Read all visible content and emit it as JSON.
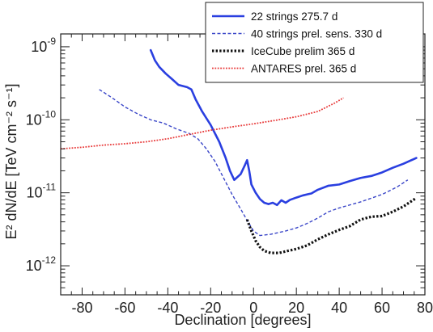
{
  "chart_data": {
    "type": "line",
    "xlabel": "Declination [degrees]",
    "ylabel": "E² dN/dE [TeV cm⁻² s⁻¹]",
    "xlim": [
      -90,
      80
    ],
    "ylim": [
      4e-13,
      1.5e-09
    ],
    "yscale": "log",
    "grid": false,
    "legend_position": "top-right",
    "x_ticks": [
      -80,
      -60,
      -40,
      -20,
      0,
      20,
      40,
      60,
      80
    ],
    "x_tick_labels": [
      "-80",
      "-60",
      "-40",
      "-20",
      "0",
      "20",
      "40",
      "60",
      "80"
    ],
    "y_ticks": [
      {
        "value": 1e-12,
        "mantissa": "10",
        "exponent": "-12"
      },
      {
        "value": 1e-11,
        "mantissa": "10",
        "exponent": "-11"
      },
      {
        "value": 1e-10,
        "mantissa": "10",
        "exponent": "-10"
      },
      {
        "value": 1e-09,
        "mantissa": "10",
        "exponent": "-9"
      }
    ],
    "series": [
      {
        "name": "22 strings 275.7 d",
        "color": "#2a3fe0",
        "style": "solid",
        "points": [
          [
            -48,
            9e-10
          ],
          [
            -46,
            6.5e-10
          ],
          [
            -44,
            5.3e-10
          ],
          [
            -41,
            4.3e-10
          ],
          [
            -38,
            3.6e-10
          ],
          [
            -35,
            3e-10
          ],
          [
            -31,
            2.8e-10
          ],
          [
            -29,
            2.6e-10
          ],
          [
            -27,
            1.9e-10
          ],
          [
            -24,
            1.3e-10
          ],
          [
            -20,
            8.5e-11
          ],
          [
            -16,
            5e-11
          ],
          [
            -13,
            3e-11
          ],
          [
            -11,
            2e-11
          ],
          [
            -9,
            1.5e-11
          ],
          [
            -6,
            1.8e-11
          ],
          [
            -4,
            2.4e-11
          ],
          [
            -3,
            2.8e-11
          ],
          [
            -2,
            2e-11
          ],
          [
            -1,
            1.3e-11
          ],
          [
            1,
            1e-11
          ],
          [
            3,
            8.2e-12
          ],
          [
            5,
            7.3e-12
          ],
          [
            7,
            7e-12
          ],
          [
            9,
            7.3e-12
          ],
          [
            11,
            6.8e-12
          ],
          [
            13,
            7.9e-12
          ],
          [
            15,
            7.3e-12
          ],
          [
            17,
            8e-12
          ],
          [
            20,
            8.6e-12
          ],
          [
            23,
            9.2e-12
          ],
          [
            27,
            9.8e-12
          ],
          [
            30,
            1.1e-11
          ],
          [
            35,
            1.25e-11
          ],
          [
            40,
            1.3e-11
          ],
          [
            45,
            1.45e-11
          ],
          [
            50,
            1.6e-11
          ],
          [
            55,
            1.7e-11
          ],
          [
            60,
            1.9e-11
          ],
          [
            65,
            2.2e-11
          ],
          [
            70,
            2.5e-11
          ],
          [
            76,
            3e-11
          ]
        ]
      },
      {
        "name": "40 strings prel. sens. 330 d",
        "color": "#3a46c8",
        "style": "dashed",
        "points": [
          [
            -72,
            2.6e-10
          ],
          [
            -66,
            2e-10
          ],
          [
            -60,
            1.5e-10
          ],
          [
            -54,
            1.2e-10
          ],
          [
            -48,
            1e-10
          ],
          [
            -42,
            9e-11
          ],
          [
            -36,
            7.5e-11
          ],
          [
            -30,
            6.5e-11
          ],
          [
            -26,
            5.5e-11
          ],
          [
            -22,
            4e-11
          ],
          [
            -18,
            2.7e-11
          ],
          [
            -14,
            1.6e-11
          ],
          [
            -10,
            9.5e-12
          ],
          [
            -6,
            6e-12
          ],
          [
            -3,
            4.2e-12
          ],
          [
            0,
            3e-12
          ],
          [
            3,
            2.6e-12
          ],
          [
            8,
            2.7e-12
          ],
          [
            15,
            3e-12
          ],
          [
            20,
            3.3e-12
          ],
          [
            25,
            3.8e-12
          ],
          [
            30,
            4.5e-12
          ],
          [
            35,
            5.5e-12
          ],
          [
            40,
            6.2e-12
          ],
          [
            50,
            7.5e-12
          ],
          [
            60,
            9.5e-12
          ],
          [
            67,
            1.2e-11
          ],
          [
            72,
            1.5e-11
          ]
        ]
      },
      {
        "name": "IceCube prelim 365 d",
        "color": "#111111",
        "style": "dotted-bold",
        "points": [
          [
            -3,
            4.3e-12
          ],
          [
            -1,
            3e-12
          ],
          [
            1,
            2.2e-12
          ],
          [
            3,
            1.8e-12
          ],
          [
            5,
            1.6e-12
          ],
          [
            8,
            1.5e-12
          ],
          [
            12,
            1.5e-12
          ],
          [
            16,
            1.6e-12
          ],
          [
            20,
            1.7e-12
          ],
          [
            25,
            1.9e-12
          ],
          [
            30,
            2.3e-12
          ],
          [
            35,
            2.7e-12
          ],
          [
            40,
            3.1e-12
          ],
          [
            45,
            3.5e-12
          ],
          [
            50,
            4.3e-12
          ],
          [
            55,
            4.7e-12
          ],
          [
            60,
            4.8e-12
          ],
          [
            65,
            5.5e-12
          ],
          [
            70,
            6.5e-12
          ],
          [
            76,
            8.5e-12
          ]
        ]
      },
      {
        "name": "ANTARES prel. 365 d",
        "color": "#e83a3a",
        "style": "dotted",
        "points": [
          [
            -90,
            4e-11
          ],
          [
            -80,
            4.2e-11
          ],
          [
            -70,
            4.5e-11
          ],
          [
            -60,
            4.7e-11
          ],
          [
            -50,
            5e-11
          ],
          [
            -40,
            5.5e-11
          ],
          [
            -30,
            6.3e-11
          ],
          [
            -20,
            7.2e-11
          ],
          [
            -10,
            8e-11
          ],
          [
            0,
            8.8e-11
          ],
          [
            10,
            9.8e-11
          ],
          [
            20,
            1.1e-10
          ],
          [
            30,
            1.3e-10
          ],
          [
            38,
            1.7e-10
          ],
          [
            42,
            2e-10
          ]
        ]
      }
    ]
  }
}
